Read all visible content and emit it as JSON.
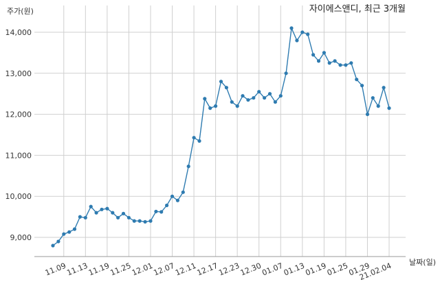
{
  "chart_data": {
    "type": "line",
    "title": "자이에스앤디, 최근 3개월",
    "ylabel": "주가(원)",
    "xlabel": "날짜(일)",
    "ylim": [
      8500,
      14400
    ],
    "yticks": [
      9000,
      10000,
      11000,
      12000,
      13000,
      14000
    ],
    "ytick_labels": [
      "9,000",
      "10,000",
      "11,000",
      "12,000",
      "13,000",
      "14,000"
    ],
    "xtick_labels": [
      "11.09",
      "11.13",
      "11.19",
      "11.25",
      "12.01",
      "12.07",
      "12.11",
      "12.17",
      "12.23",
      "12.30",
      "01.07",
      "01.13",
      "01.19",
      "01.25",
      "01.29",
      "21.02.04"
    ],
    "xtick_positions": [
      2,
      6,
      10,
      14,
      18,
      22,
      26,
      30,
      34,
      38,
      42,
      46,
      50,
      54,
      58,
      62
    ],
    "color": "#2e7bb0",
    "grid": true,
    "series": [
      {
        "name": "",
        "values": [
          8800,
          8900,
          9080,
          9130,
          9200,
          9500,
          9480,
          9750,
          9600,
          9680,
          9700,
          9600,
          9480,
          9580,
          9480,
          9400,
          9400,
          9380,
          9400,
          9630,
          9620,
          9780,
          10000,
          9900,
          10100,
          10730,
          11430,
          11350,
          12380,
          12150,
          12200,
          12800,
          12650,
          12300,
          12200,
          12450,
          12350,
          12400,
          12550,
          12400,
          12500,
          12300,
          12450,
          13000,
          14100,
          13800,
          14000,
          13950,
          13450,
          13300,
          13500,
          13250,
          13300,
          13200,
          13200,
          13250,
          12850,
          12700,
          12000,
          12400,
          12200,
          12650,
          12150
        ]
      }
    ]
  }
}
